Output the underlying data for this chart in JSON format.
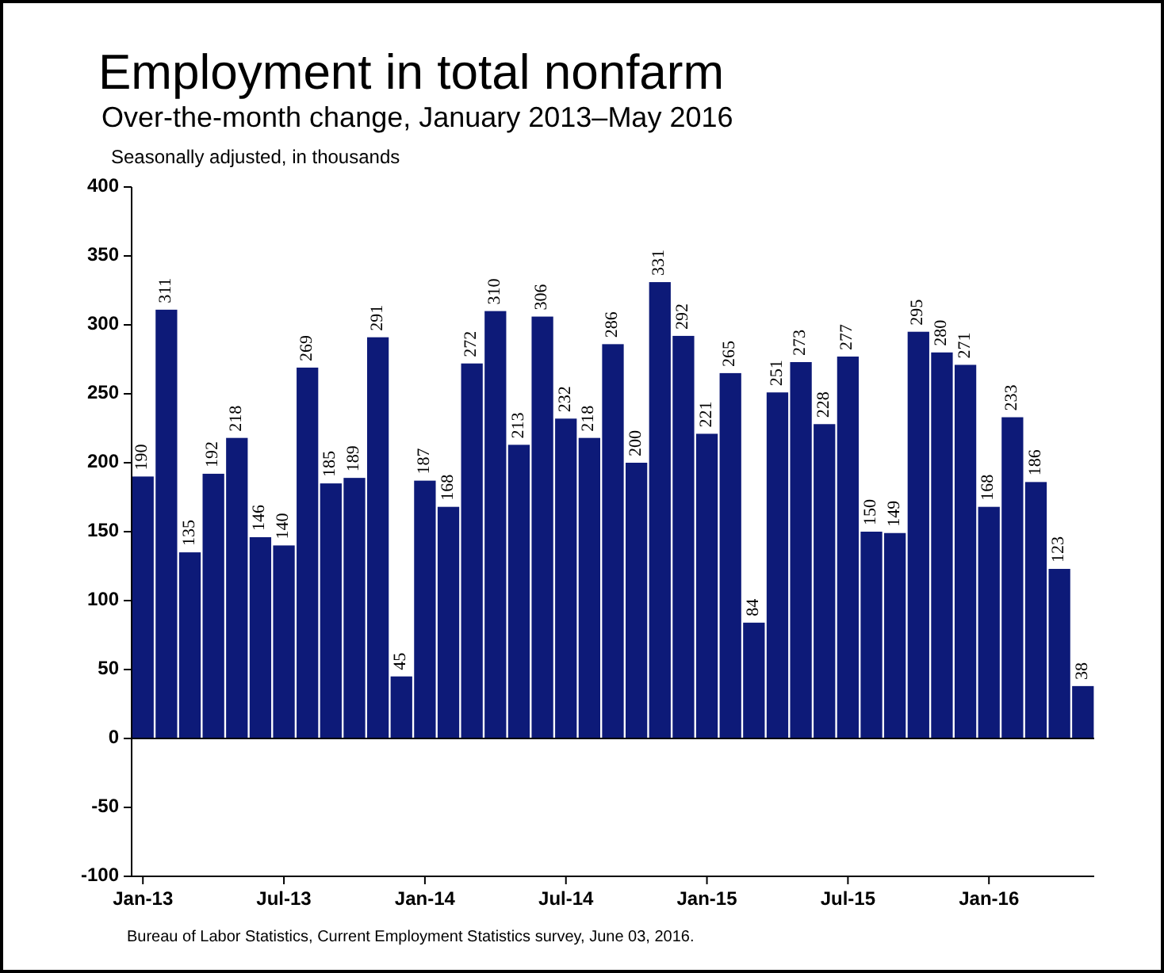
{
  "chart_data": {
    "type": "bar",
    "title": "Employment in total nonfarm",
    "subtitle": "Over-the-month change, January 2013–May 2016",
    "ylabel": "Seasonally adjusted, in thousands",
    "annotations": [
      "Bureau of Labor Statistics, Current Employment Statistics survey, June 03, 2016."
    ],
    "categories": [
      "Jan-13",
      null,
      null,
      null,
      null,
      null,
      "Jul-13",
      null,
      null,
      null,
      null,
      null,
      "Jan-14",
      null,
      null,
      null,
      null,
      null,
      "Jul-14",
      null,
      null,
      null,
      null,
      null,
      "Jan-15",
      null,
      null,
      null,
      null,
      null,
      "Jul-15",
      null,
      null,
      null,
      null,
      null,
      "Jan-16",
      null,
      null,
      null,
      null
    ],
    "values": [
      190,
      311,
      135,
      192,
      218,
      146,
      140,
      269,
      185,
      189,
      291,
      45,
      187,
      168,
      272,
      310,
      213,
      306,
      232,
      218,
      286,
      200,
      331,
      292,
      221,
      265,
      84,
      251,
      273,
      228,
      277,
      150,
      149,
      295,
      280,
      271,
      168,
      233,
      186,
      123,
      38
    ],
    "color": "#0d1a78",
    "ylim": [
      -100,
      400
    ],
    "yticks": [
      -100,
      -50,
      0,
      50,
      100,
      150,
      200,
      250,
      300,
      350,
      400
    ],
    "data_labels": true
  }
}
